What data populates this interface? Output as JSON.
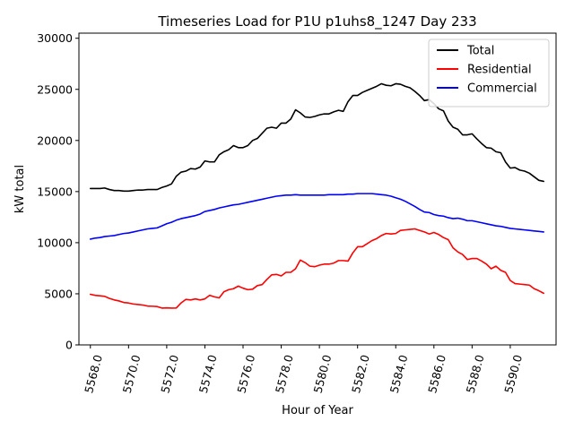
{
  "chart_data": {
    "type": "line",
    "title": "Timeseries Load for P1U p1uhs8_1247  Day 233",
    "xlabel": "Hour of Year",
    "ylabel": "kW total",
    "xlim": [
      5567.4,
      5592.4
    ],
    "ylim": [
      0,
      30500
    ],
    "x_ticks": [
      5568.0,
      5570.0,
      5572.0,
      5574.0,
      5576.0,
      5578.0,
      5580.0,
      5582.0,
      5584.0,
      5586.0,
      5588.0,
      5590.0
    ],
    "x_tick_labels": [
      "5568.0",
      "5570.0",
      "5572.0",
      "5574.0",
      "5576.0",
      "5578.0",
      "5580.0",
      "5582.0",
      "5584.0",
      "5586.0",
      "5588.0",
      "5590.0"
    ],
    "y_ticks": [
      0,
      5000,
      10000,
      15000,
      20000,
      25000,
      30000
    ],
    "y_tick_labels": [
      "0",
      "5000",
      "10000",
      "15000",
      "20000",
      "25000",
      "30000"
    ],
    "legend_position": "top-right",
    "x": [
      5568.0,
      5568.25,
      5568.5,
      5568.75,
      5569.0,
      5569.25,
      5569.5,
      5569.75,
      5570.0,
      5570.25,
      5570.5,
      5570.75,
      5571.0,
      5571.25,
      5571.5,
      5571.75,
      5572.0,
      5572.25,
      5572.5,
      5572.75,
      5573.0,
      5573.25,
      5573.5,
      5573.75,
      5574.0,
      5574.25,
      5574.5,
      5574.75,
      5575.0,
      5575.25,
      5575.5,
      5575.75,
      5576.0,
      5576.25,
      5576.5,
      5576.75,
      5577.0,
      5577.25,
      5577.5,
      5577.75,
      5578.0,
      5578.25,
      5578.5,
      5578.75,
      5579.0,
      5579.25,
      5579.5,
      5579.75,
      5580.0,
      5580.25,
      5580.5,
      5580.75,
      5581.0,
      5581.25,
      5581.5,
      5581.75,
      5582.0,
      5582.25,
      5582.5,
      5582.75,
      5583.0,
      5583.25,
      5583.5,
      5583.75,
      5584.0,
      5584.25,
      5584.5,
      5584.75,
      5585.0,
      5585.25,
      5585.5,
      5585.75,
      5586.0,
      5586.25,
      5586.5,
      5586.75,
      5587.0,
      5587.25,
      5587.5,
      5587.75,
      5588.0,
      5588.25,
      5588.5,
      5588.75,
      5589.0,
      5589.25,
      5589.5,
      5589.75,
      5590.0,
      5590.25,
      5590.5,
      5590.75,
      5591.0,
      5591.25,
      5591.5,
      5591.75
    ],
    "series": [
      {
        "name": "Total",
        "color": "#000000",
        "values": [
          15300,
          15300,
          15300,
          15350,
          15200,
          15100,
          15100,
          15050,
          15050,
          15100,
          15150,
          15150,
          15200,
          15200,
          15200,
          15400,
          15550,
          15750,
          16500,
          16900,
          17000,
          17250,
          17200,
          17400,
          18000,
          17900,
          17900,
          18600,
          18900,
          19100,
          19500,
          19300,
          19300,
          19500,
          20000,
          20200,
          20700,
          21200,
          21300,
          21200,
          21700,
          21700,
          22100,
          23000,
          22700,
          22300,
          22250,
          22350,
          22500,
          22600,
          22600,
          22800,
          22950,
          22850,
          23800,
          24400,
          24400,
          24700,
          24900,
          25100,
          25300,
          25550,
          25400,
          25350,
          25550,
          25500,
          25300,
          25150,
          24800,
          24400,
          23900,
          24000,
          23600,
          23100,
          22900,
          21900,
          21300,
          21100,
          20550,
          20550,
          20650,
          20150,
          19700,
          19300,
          19250,
          18900,
          18800,
          17900,
          17300,
          17350,
          17100,
          17000,
          16800,
          16450,
          16100,
          16000
        ]
      },
      {
        "name": "Residential",
        "color": "#ff0000",
        "values": [
          4950,
          4850,
          4800,
          4750,
          4550,
          4400,
          4300,
          4150,
          4100,
          4000,
          3950,
          3900,
          3800,
          3780,
          3750,
          3600,
          3620,
          3600,
          3610,
          4100,
          4450,
          4400,
          4500,
          4400,
          4500,
          4850,
          4700,
          4600,
          5200,
          5400,
          5500,
          5750,
          5550,
          5400,
          5450,
          5800,
          5900,
          6400,
          6850,
          6900,
          6750,
          7100,
          7100,
          7450,
          8300,
          8050,
          7700,
          7650,
          7800,
          7900,
          7900,
          8000,
          8250,
          8250,
          8200,
          9000,
          9600,
          9600,
          9900,
          10200,
          10400,
          10700,
          10900,
          10850,
          10900,
          11200,
          11250,
          11300,
          11350,
          11200,
          11050,
          10850,
          11000,
          10800,
          10500,
          10300,
          9500,
          9100,
          8850,
          8350,
          8450,
          8450,
          8200,
          7900,
          7450,
          7700,
          7300,
          7100,
          6300,
          6000,
          5950,
          5900,
          5850,
          5500,
          5300,
          5050
        ]
      },
      {
        "name": "Commercial",
        "color": "#0000ff",
        "values": [
          10350,
          10450,
          10500,
          10600,
          10650,
          10700,
          10800,
          10900,
          10950,
          11050,
          11150,
          11250,
          11350,
          11400,
          11450,
          11650,
          11850,
          12000,
          12200,
          12350,
          12450,
          12550,
          12650,
          12800,
          13050,
          13150,
          13250,
          13400,
          13500,
          13600,
          13700,
          13750,
          13850,
          13950,
          14050,
          14150,
          14250,
          14350,
          14450,
          14550,
          14600,
          14650,
          14650,
          14700,
          14650,
          14650,
          14650,
          14650,
          14650,
          14650,
          14700,
          14700,
          14700,
          14700,
          14750,
          14750,
          14800,
          14800,
          14800,
          14800,
          14750,
          14700,
          14650,
          14550,
          14400,
          14250,
          14050,
          13800,
          13550,
          13250,
          13000,
          12950,
          12750,
          12650,
          12600,
          12450,
          12350,
          12400,
          12300,
          12150,
          12150,
          12050,
          11950,
          11850,
          11750,
          11650,
          11600,
          11500,
          11400,
          11350,
          11300,
          11250,
          11200,
          11150,
          11100,
          11050
        ]
      }
    ]
  }
}
